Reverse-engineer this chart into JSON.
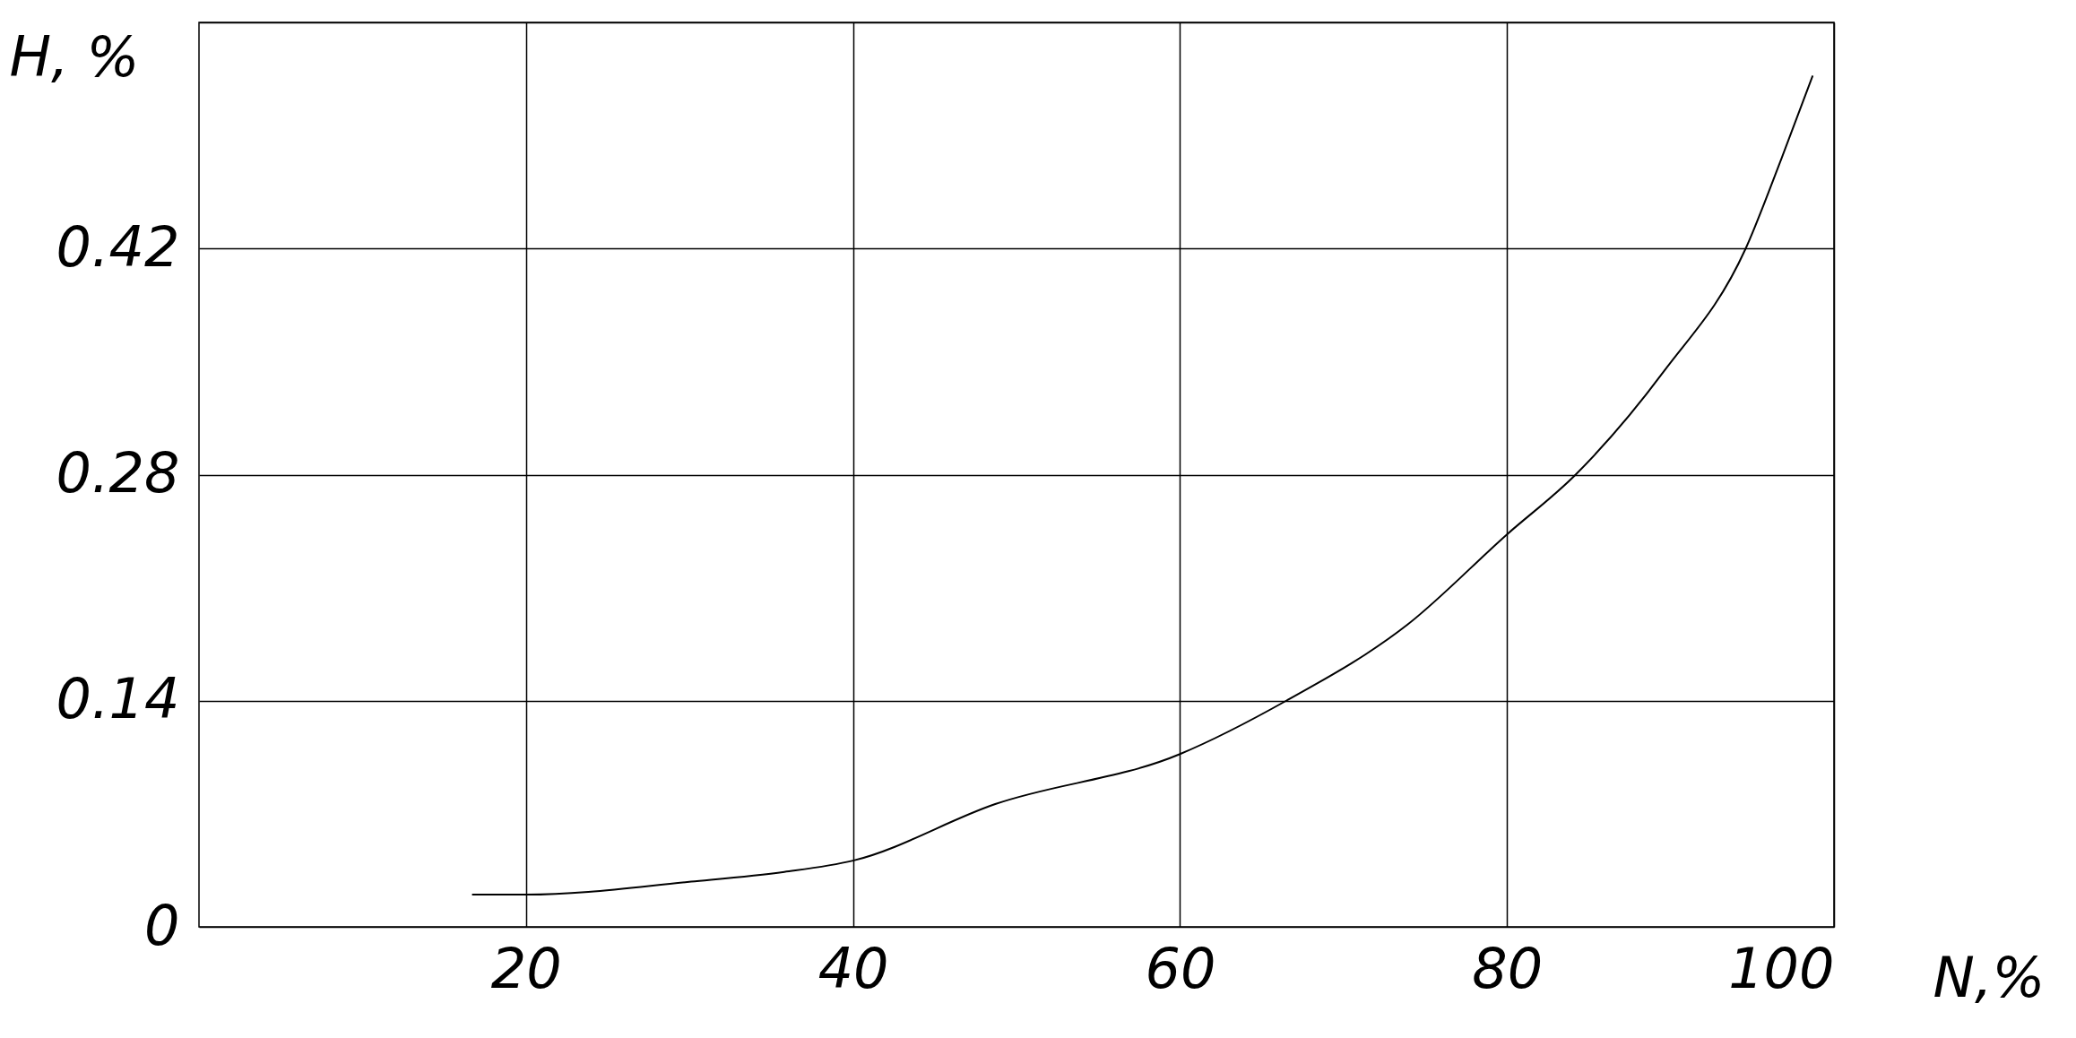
{
  "chart_data": {
    "type": "line",
    "xlabel": "N,%",
    "ylabel": "H, %",
    "x": [
      16.7,
      20,
      30.1,
      35.8,
      40,
      48.7,
      60,
      66.5,
      73.9,
      80,
      84.2,
      89.6,
      94.6,
      96.8,
      98.7
    ],
    "series": [
      {
        "color": "#000000",
        "values": [
          0.02,
          0.02,
          0.028,
          0.034,
          0.041,
          0.076,
          0.107,
          0.14,
          0.187,
          0.243,
          0.28,
          0.344,
          0.42,
          0.476,
          0.527
        ]
      }
    ],
    "xlim": [
      0,
      100
    ],
    "xticks": [
      20,
      40,
      60,
      80,
      100
    ],
    "ylim": [
      0,
      0.56
    ],
    "yticks": [
      0,
      0.14,
      0.28,
      0.42,
      {
        "value": 0.56,
        "label": null
      }
    ],
    "grid": true,
    "marker": "none",
    "line_style": "solid"
  }
}
